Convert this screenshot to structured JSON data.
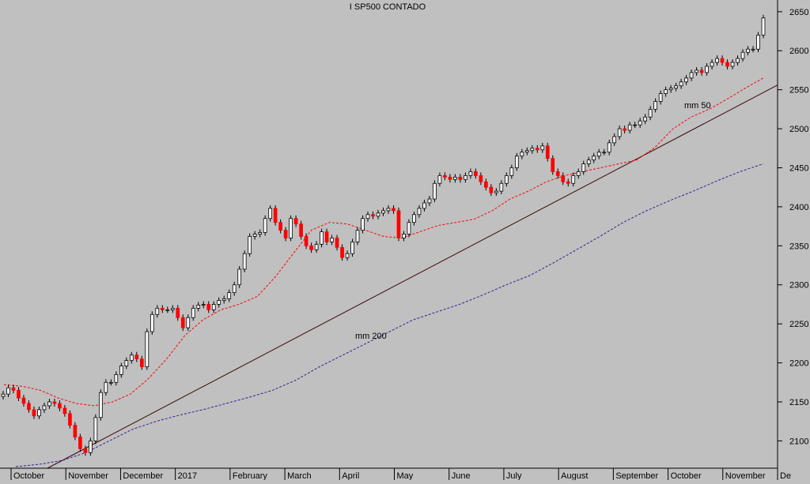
{
  "chart_data": {
    "type": "candlestick",
    "title": "I SP500 CONTADO",
    "xlabel": "",
    "ylabel": "",
    "ylim": [
      2065,
      2665
    ],
    "y_ticks": [
      2100,
      2150,
      2200,
      2250,
      2300,
      2350,
      2400,
      2450,
      2500,
      2550,
      2600,
      2650
    ],
    "x_tick_labels": [
      "October",
      "November",
      "December",
      "2017",
      "February",
      "March",
      "April",
      "May",
      "June",
      "July",
      "August",
      "September",
      "October",
      "November",
      "De"
    ],
    "grid": false,
    "colors": {
      "background": "#c0c0c0",
      "up_body": "#ffffff",
      "down_body": "#ff0000",
      "wick": "#000000",
      "ma50": "#ff0000",
      "ma200": "#3a1a9a",
      "trendline": "#3a0a0a"
    },
    "annotations": [
      {
        "text": "mm 50",
        "color": "#ff0000"
      },
      {
        "text": "mm 200",
        "color": "#3a1a9a"
      }
    ],
    "trendline": {
      "start": 2065,
      "end": 2556
    },
    "ma50": [
      2172,
      2170,
      2165,
      2155,
      2148,
      2145,
      2150,
      2160,
      2180,
      2205,
      2235,
      2255,
      2268,
      2275,
      2285,
      2310,
      2340,
      2370,
      2380,
      2378,
      2370,
      2362,
      2360,
      2368,
      2376,
      2380,
      2384,
      2395,
      2410,
      2420,
      2432,
      2440,
      2445,
      2450,
      2455,
      2460,
      2476,
      2500,
      2515,
      2525,
      2538,
      2552,
      2565
    ],
    "ma200": [
      2067,
      2070,
      2075,
      2085,
      2100,
      2115,
      2125,
      2133,
      2140,
      2148,
      2156,
      2165,
      2178,
      2195,
      2210,
      2225,
      2240,
      2255,
      2265,
      2275,
      2287,
      2300,
      2312,
      2328,
      2345,
      2362,
      2380,
      2395,
      2408,
      2420,
      2433,
      2445,
      2455
    ],
    "closes": [
      2160,
      2168,
      2165,
      2155,
      2148,
      2140,
      2132,
      2140,
      2145,
      2150,
      2148,
      2142,
      2135,
      2120,
      2105,
      2090,
      2085,
      2100,
      2130,
      2162,
      2175,
      2175,
      2185,
      2196,
      2203,
      2210,
      2205,
      2195,
      2240,
      2262,
      2270,
      2268,
      2268,
      2270,
      2258,
      2245,
      2258,
      2270,
      2274,
      2275,
      2268,
      2275,
      2280,
      2282,
      2290,
      2300,
      2320,
      2340,
      2362,
      2365,
      2367,
      2385,
      2398,
      2380,
      2370,
      2360,
      2385,
      2378,
      2362,
      2350,
      2345,
      2352,
      2368,
      2355,
      2360,
      2348,
      2335,
      2340,
      2355,
      2370,
      2385,
      2390,
      2388,
      2392,
      2395,
      2398,
      2395,
      2360,
      2365,
      2380,
      2390,
      2398,
      2405,
      2410,
      2430,
      2440,
      2438,
      2435,
      2438,
      2435,
      2440,
      2445,
      2440,
      2432,
      2425,
      2418,
      2420,
      2430,
      2440,
      2450,
      2465,
      2470,
      2472,
      2475,
      2473,
      2478,
      2462,
      2445,
      2440,
      2432,
      2430,
      2440,
      2445,
      2455,
      2460,
      2465,
      2470,
      2470,
      2482,
      2490,
      2500,
      2498,
      2505,
      2505,
      2510,
      2515,
      2525,
      2535,
      2545,
      2550,
      2552,
      2555,
      2560,
      2565,
      2572,
      2575,
      2572,
      2580,
      2585,
      2590,
      2585,
      2580,
      2585,
      2590,
      2598,
      2602,
      2602,
      2620,
      2642
    ]
  }
}
